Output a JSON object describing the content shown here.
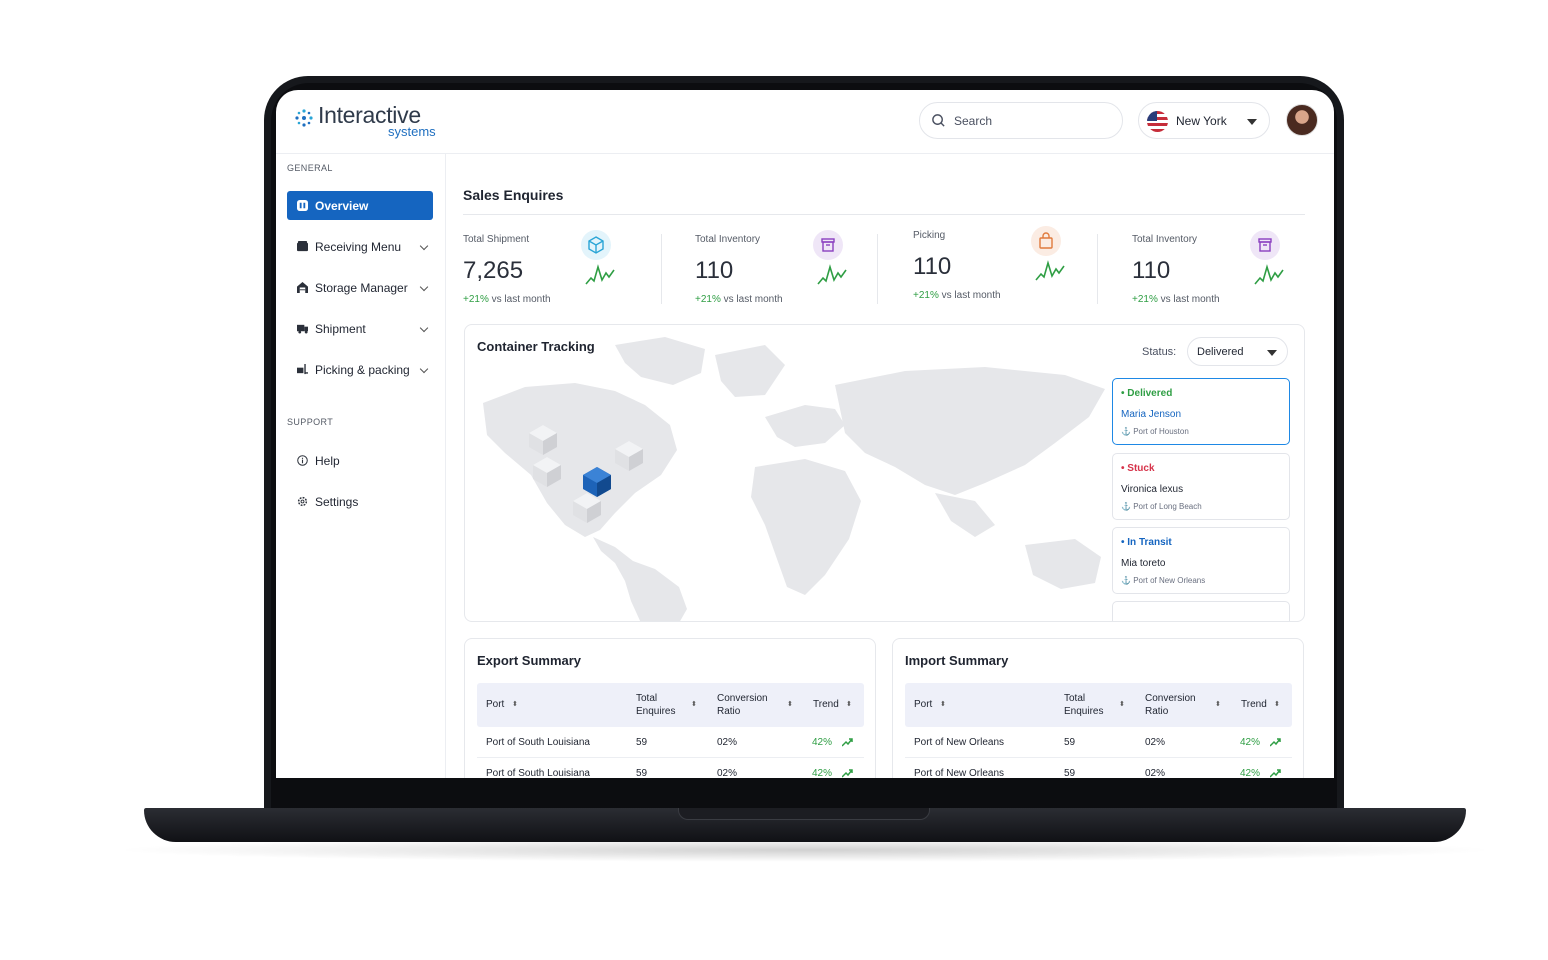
{
  "brand": {
    "name_main": "Interactive",
    "name_sub": "systems"
  },
  "header": {
    "search_placeholder": "Search",
    "location": "New York"
  },
  "sidebar": {
    "general_label": "GENERAL",
    "support_label": "SUPPORT",
    "items": [
      {
        "label": "Overview",
        "icon": "grid-icon",
        "active": true
      },
      {
        "label": "Receiving Menu",
        "icon": "box-icon"
      },
      {
        "label": "Storage Manager",
        "icon": "warehouse-icon"
      },
      {
        "label": "Shipment",
        "icon": "truck-icon"
      },
      {
        "label": "Picking & packing",
        "icon": "forklift-icon"
      }
    ],
    "support_items": [
      {
        "label": "Help",
        "icon": "info-icon"
      },
      {
        "label": "Settings",
        "icon": "gear-icon"
      }
    ]
  },
  "sales": {
    "title": "Sales Enquires",
    "kpis": [
      {
        "label": "Total Shipment",
        "value": "7,265",
        "delta": "+21%",
        "delta_text": "vs last month",
        "icon": "cube-icon",
        "icon_bg": "#e3f4fb",
        "icon_color": "#2aa5d6"
      },
      {
        "label": "Total Inventory",
        "value": "110",
        "delta": "+21%",
        "delta_text": "vs last month",
        "icon": "archive-icon",
        "icon_bg": "#efe6f7",
        "icon_color": "#8a3fc0"
      },
      {
        "label": "Picking",
        "value": "110",
        "delta": "+21%",
        "delta_text": "vs last month",
        "icon": "bag-icon",
        "icon_bg": "#fbece3",
        "icon_color": "#e07a3c"
      },
      {
        "label": "Total Inventory",
        "value": "110",
        "delta": "+21%",
        "delta_text": "vs last month",
        "icon": "archive-icon",
        "icon_bg": "#efe6f7",
        "icon_color": "#8a3fc0"
      }
    ]
  },
  "tracking": {
    "title": "Container Tracking",
    "status_label": "Status:",
    "status_value": "Delivered",
    "cards": [
      {
        "status": "Delivered",
        "status_color": "#2f9e44",
        "name": "Maria Jenson",
        "port": "Port of Houston",
        "selected": true
      },
      {
        "status": "Stuck",
        "status_color": "#d6334a",
        "name": "Vironica lexus",
        "port": "Port of Long Beach"
      },
      {
        "status": "In Transit",
        "status_color": "#1565c0",
        "name": "Mia toreto",
        "port": "Port of New Orleans"
      }
    ]
  },
  "export": {
    "title": "Export Summary",
    "headers": [
      "Port",
      "Total Enquires",
      "Conversion Ratio",
      "Trend"
    ],
    "rows": [
      [
        "Port of South Louisiana",
        "59",
        "02%",
        "42%"
      ],
      [
        "Port of South Louisiana",
        "59",
        "02%",
        "42%"
      ]
    ]
  },
  "import": {
    "title": "Import Summary",
    "headers": [
      "Port",
      "Total Enquires",
      "Conversion Ratio",
      "Trend"
    ],
    "rows": [
      [
        "Port of New Orleans",
        "59",
        "02%",
        "42%"
      ],
      [
        "Port of New Orleans",
        "59",
        "02%",
        "42%"
      ]
    ]
  },
  "colors": {
    "accent": "#1565c0",
    "positive": "#2f9e44"
  }
}
